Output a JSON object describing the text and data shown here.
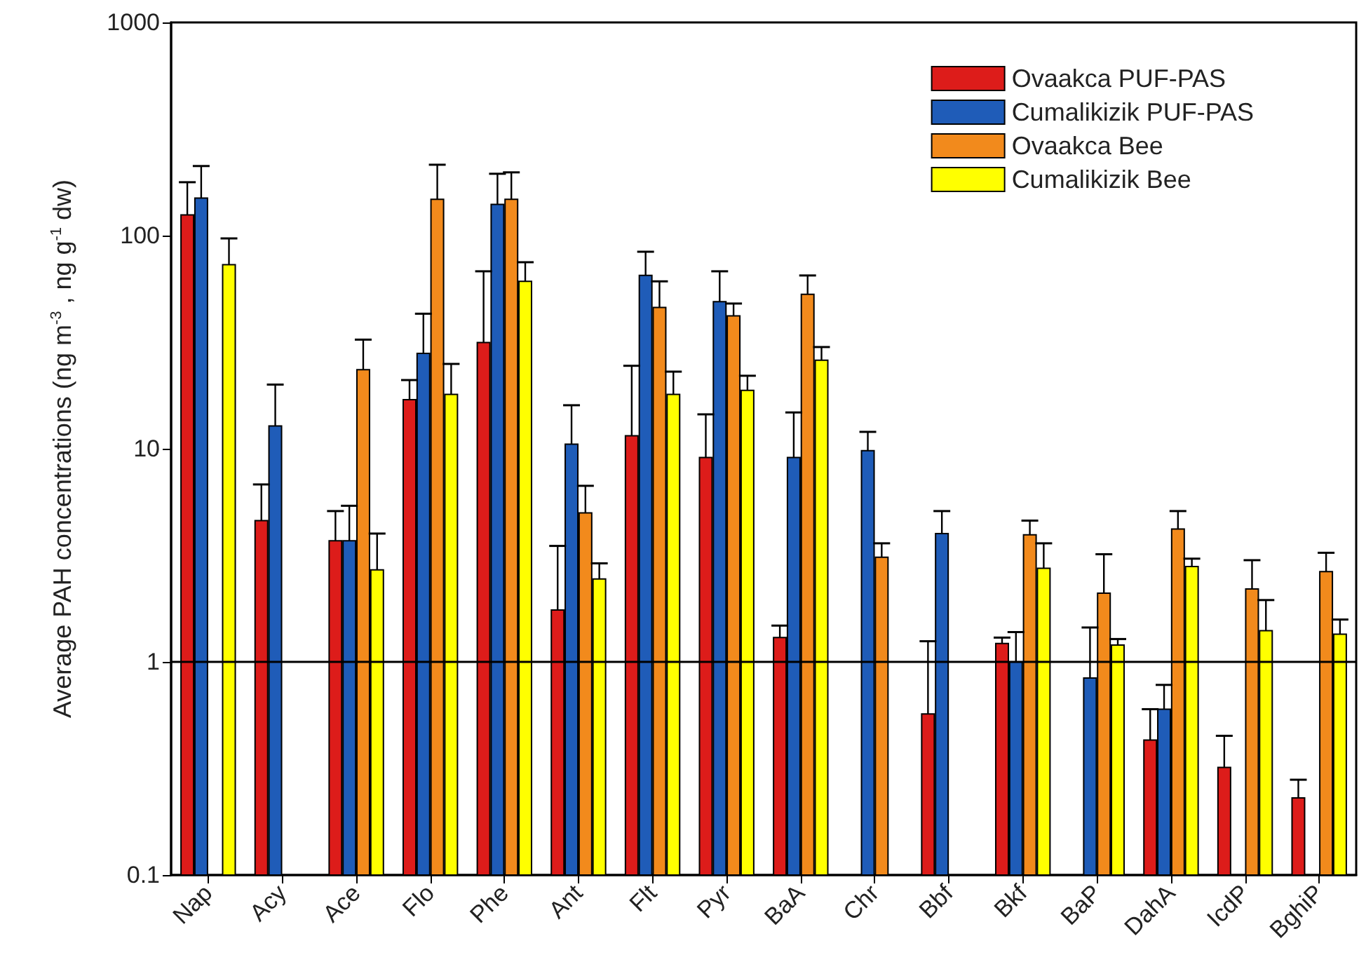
{
  "chart_data": {
    "type": "bar",
    "ylabel": "Average PAH concentrations (ng m$^{-3}$ , ng g$^{-1}$ dw)",
    "categories": [
      "Nap",
      "Acy",
      "Ace",
      "Flo",
      "Phe",
      "Ant",
      "Flt",
      "Pyr",
      "BaA",
      "Chr",
      "Bbf",
      "Bkf",
      "BaP",
      "DahA",
      "IcdP",
      "BghiP"
    ],
    "series": [
      {
        "name": "Ovaakca PUF-PAS",
        "color": "#dd1c1a",
        "values": [
          125,
          4.6,
          3.7,
          17,
          31.5,
          1.75,
          11.5,
          9.1,
          1.3,
          null,
          0.57,
          1.22,
          null,
          0.43,
          0.32,
          0.23
        ],
        "errors": [
          [
            125,
            178
          ],
          [
            4.6,
            6.8
          ],
          [
            3.7,
            5.1
          ],
          [
            17,
            21
          ],
          [
            31.5,
            68
          ],
          [
            1.75,
            3.5
          ],
          [
            11.5,
            24.5
          ],
          [
            9.1,
            14.5
          ],
          [
            1.3,
            1.48
          ],
          null,
          [
            0.57,
            1.25
          ],
          [
            1.22,
            1.3
          ],
          null,
          [
            0.43,
            0.6
          ],
          [
            0.32,
            0.45
          ],
          [
            0.23,
            0.28
          ]
        ]
      },
      {
        "name": "Cumalikizik PUF-PAS",
        "color": "#1f5cb8",
        "values": [
          150,
          12.8,
          3.7,
          28,
          140,
          10.5,
          65,
          49,
          9.1,
          9.8,
          4.0,
          1.0,
          0.84,
          0.6,
          null,
          null
        ],
        "errors": [
          [
            150,
            212
          ],
          [
            12.8,
            20
          ],
          [
            3.7,
            5.4
          ],
          [
            28,
            43
          ],
          [
            140,
            195
          ],
          [
            10.5,
            16
          ],
          [
            65,
            84
          ],
          [
            49,
            68
          ],
          [
            9.1,
            14.8
          ],
          [
            9.8,
            12
          ],
          [
            4.0,
            5.1
          ],
          [
            1.0,
            1.38
          ],
          [
            0.84,
            1.45
          ],
          [
            0.6,
            0.78
          ],
          null,
          null
        ]
      },
      {
        "name": "Ovaakca Bee",
        "color": "#f28a1c",
        "values": [
          null,
          null,
          23.5,
          148,
          148,
          5.0,
          46,
          42,
          53,
          3.1,
          null,
          3.95,
          2.1,
          4.2,
          2.2,
          2.65
        ],
        "errors": [
          null,
          null,
          [
            23.5,
            32.5
          ],
          [
            148,
            215
          ],
          [
            148,
            198
          ],
          [
            5.0,
            6.7
          ],
          [
            46,
            61
          ],
          [
            42,
            48
          ],
          [
            53,
            65
          ],
          [
            3.1,
            3.6
          ],
          null,
          [
            3.95,
            4.6
          ],
          [
            2.1,
            3.2
          ],
          [
            4.2,
            5.1
          ],
          [
            2.2,
            3.0
          ],
          [
            2.65,
            3.25
          ]
        ]
      },
      {
        "name": "Cumalikizik Bee",
        "color": "#ffff00",
        "values": [
          73,
          null,
          2.7,
          18,
          61,
          2.45,
          18,
          18.8,
          26,
          null,
          null,
          2.75,
          1.2,
          2.8,
          1.4,
          1.35
        ],
        "errors": [
          [
            73,
            97
          ],
          null,
          [
            2.7,
            4.0
          ],
          [
            18,
            25
          ],
          [
            61,
            75
          ],
          [
            2.45,
            2.9
          ],
          [
            18,
            23
          ],
          [
            18.8,
            22
          ],
          [
            26,
            30
          ],
          null,
          null,
          [
            2.75,
            3.6
          ],
          [
            1.2,
            1.28
          ],
          [
            2.8,
            3.05
          ],
          [
            1.4,
            1.95
          ],
          [
            1.35,
            1.58
          ]
        ]
      }
    ],
    "log": "y",
    "ylim": [
      0.1,
      1000
    ],
    "yticks": [
      0.1,
      1,
      10,
      100,
      1000
    ],
    "ref_lines": [
      {
        "axis": "y",
        "value": 1,
        "color": "#000000",
        "line_style": "solid"
      }
    ],
    "legend": "top right",
    "grid": false
  }
}
